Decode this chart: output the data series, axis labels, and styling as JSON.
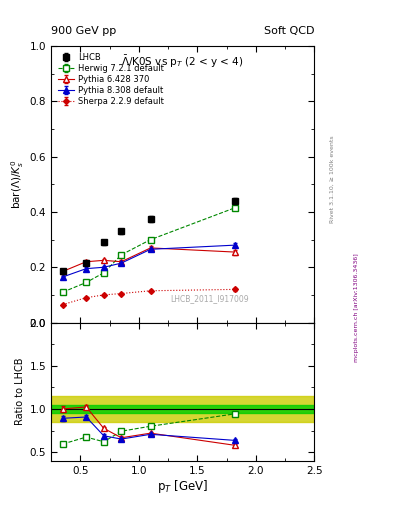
{
  "title_top": "900 GeV pp",
  "title_right": "Soft QCD",
  "plot_title": "$\\bar{\\Lambda}$/K0S vs p$_{T}$ (2 < y < 4)",
  "ylabel_main": "bar($\\Lambda$)/$K^0_s$",
  "ylabel_ratio": "Ratio to LHCB",
  "xlabel": "p$_{T}$ [GeV]",
  "watermark": "LHCB_2011_I917009",
  "rivet_label": "Rivet 3.1.10, ≥ 100k events",
  "mcplots_label": "mcplots.cern.ch [arXiv:1306.3436]",
  "xlim": [
    0.25,
    2.5
  ],
  "ylim_main": [
    0.0,
    1.0
  ],
  "ylim_ratio": [
    0.4,
    2.0
  ],
  "lhcb_x": [
    0.35,
    0.55,
    0.7,
    0.85,
    1.1,
    1.82
  ],
  "lhcb_y": [
    0.185,
    0.215,
    0.29,
    0.33,
    0.375,
    0.44
  ],
  "lhcb_yerr": [
    0.008,
    0.008,
    0.008,
    0.008,
    0.01,
    0.012
  ],
  "lhcb_band_inner": 0.05,
  "lhcb_band_outer": 0.15,
  "herwig_x": [
    0.35,
    0.55,
    0.7,
    0.85,
    1.1,
    1.82
  ],
  "herwig_y": [
    0.11,
    0.145,
    0.18,
    0.245,
    0.3,
    0.415
  ],
  "herwig_yerr": [
    0.004,
    0.004,
    0.004,
    0.004,
    0.005,
    0.007
  ],
  "pythia6_x": [
    0.35,
    0.55,
    0.7,
    0.85,
    1.1,
    1.82
  ],
  "pythia6_y": [
    0.185,
    0.22,
    0.225,
    0.22,
    0.27,
    0.255
  ],
  "pythia6_yerr": [
    0.006,
    0.006,
    0.006,
    0.006,
    0.007,
    0.009
  ],
  "pythia8_x": [
    0.35,
    0.55,
    0.7,
    0.85,
    1.1,
    1.82
  ],
  "pythia8_y": [
    0.165,
    0.195,
    0.2,
    0.215,
    0.265,
    0.28
  ],
  "pythia8_yerr": [
    0.005,
    0.005,
    0.005,
    0.005,
    0.006,
    0.008
  ],
  "sherpa_x": [
    0.35,
    0.55,
    0.7,
    0.85,
    1.1,
    1.82
  ],
  "sherpa_y": [
    0.065,
    0.09,
    0.1,
    0.105,
    0.115,
    0.12
  ],
  "sherpa_yerr": [
    0.003,
    0.003,
    0.003,
    0.003,
    0.004,
    0.005
  ],
  "color_lhcb": "#000000",
  "color_herwig": "#008800",
  "color_pythia6": "#cc0000",
  "color_pythia8": "#0000cc",
  "color_sherpa": "#cc0000",
  "color_band_inner": "#00cc00",
  "color_band_outer": "#cccc00"
}
